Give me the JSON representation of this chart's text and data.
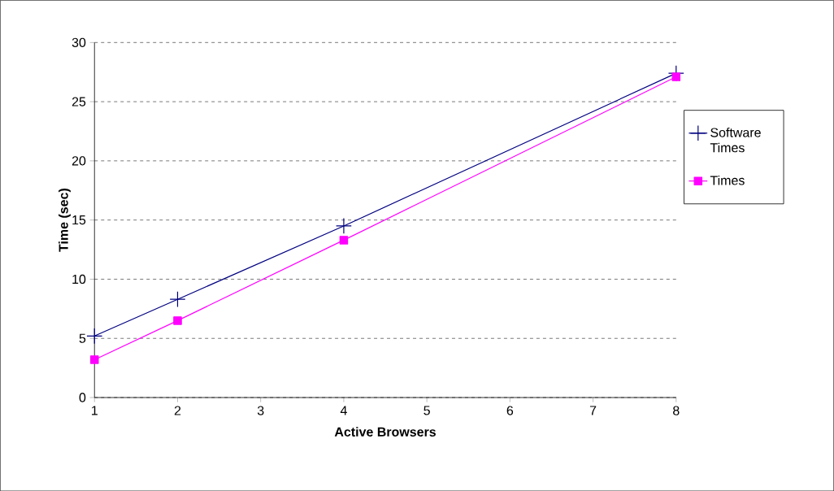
{
  "chart_data": {
    "type": "line",
    "xlabel": "Active Browsers",
    "ylabel": "Time (sec)",
    "x": [
      1,
      2,
      4,
      8
    ],
    "series": [
      {
        "name": "Software Times",
        "color": "#000080",
        "marker": "cross",
        "values": [
          5.2,
          8.3,
          14.5,
          27.4
        ]
      },
      {
        "name": "Times",
        "color": "#ff00ff",
        "marker": "square",
        "values": [
          3.2,
          6.5,
          13.3,
          27.1
        ]
      }
    ],
    "xlim": [
      1,
      8
    ],
    "xticks": [
      1,
      2,
      3,
      4,
      5,
      6,
      7,
      8
    ],
    "ylim": [
      0,
      30
    ],
    "yticks": [
      0,
      5,
      10,
      15,
      20,
      25,
      30
    ],
    "grid": "y",
    "legend": "right",
    "line_style": "solid"
  }
}
